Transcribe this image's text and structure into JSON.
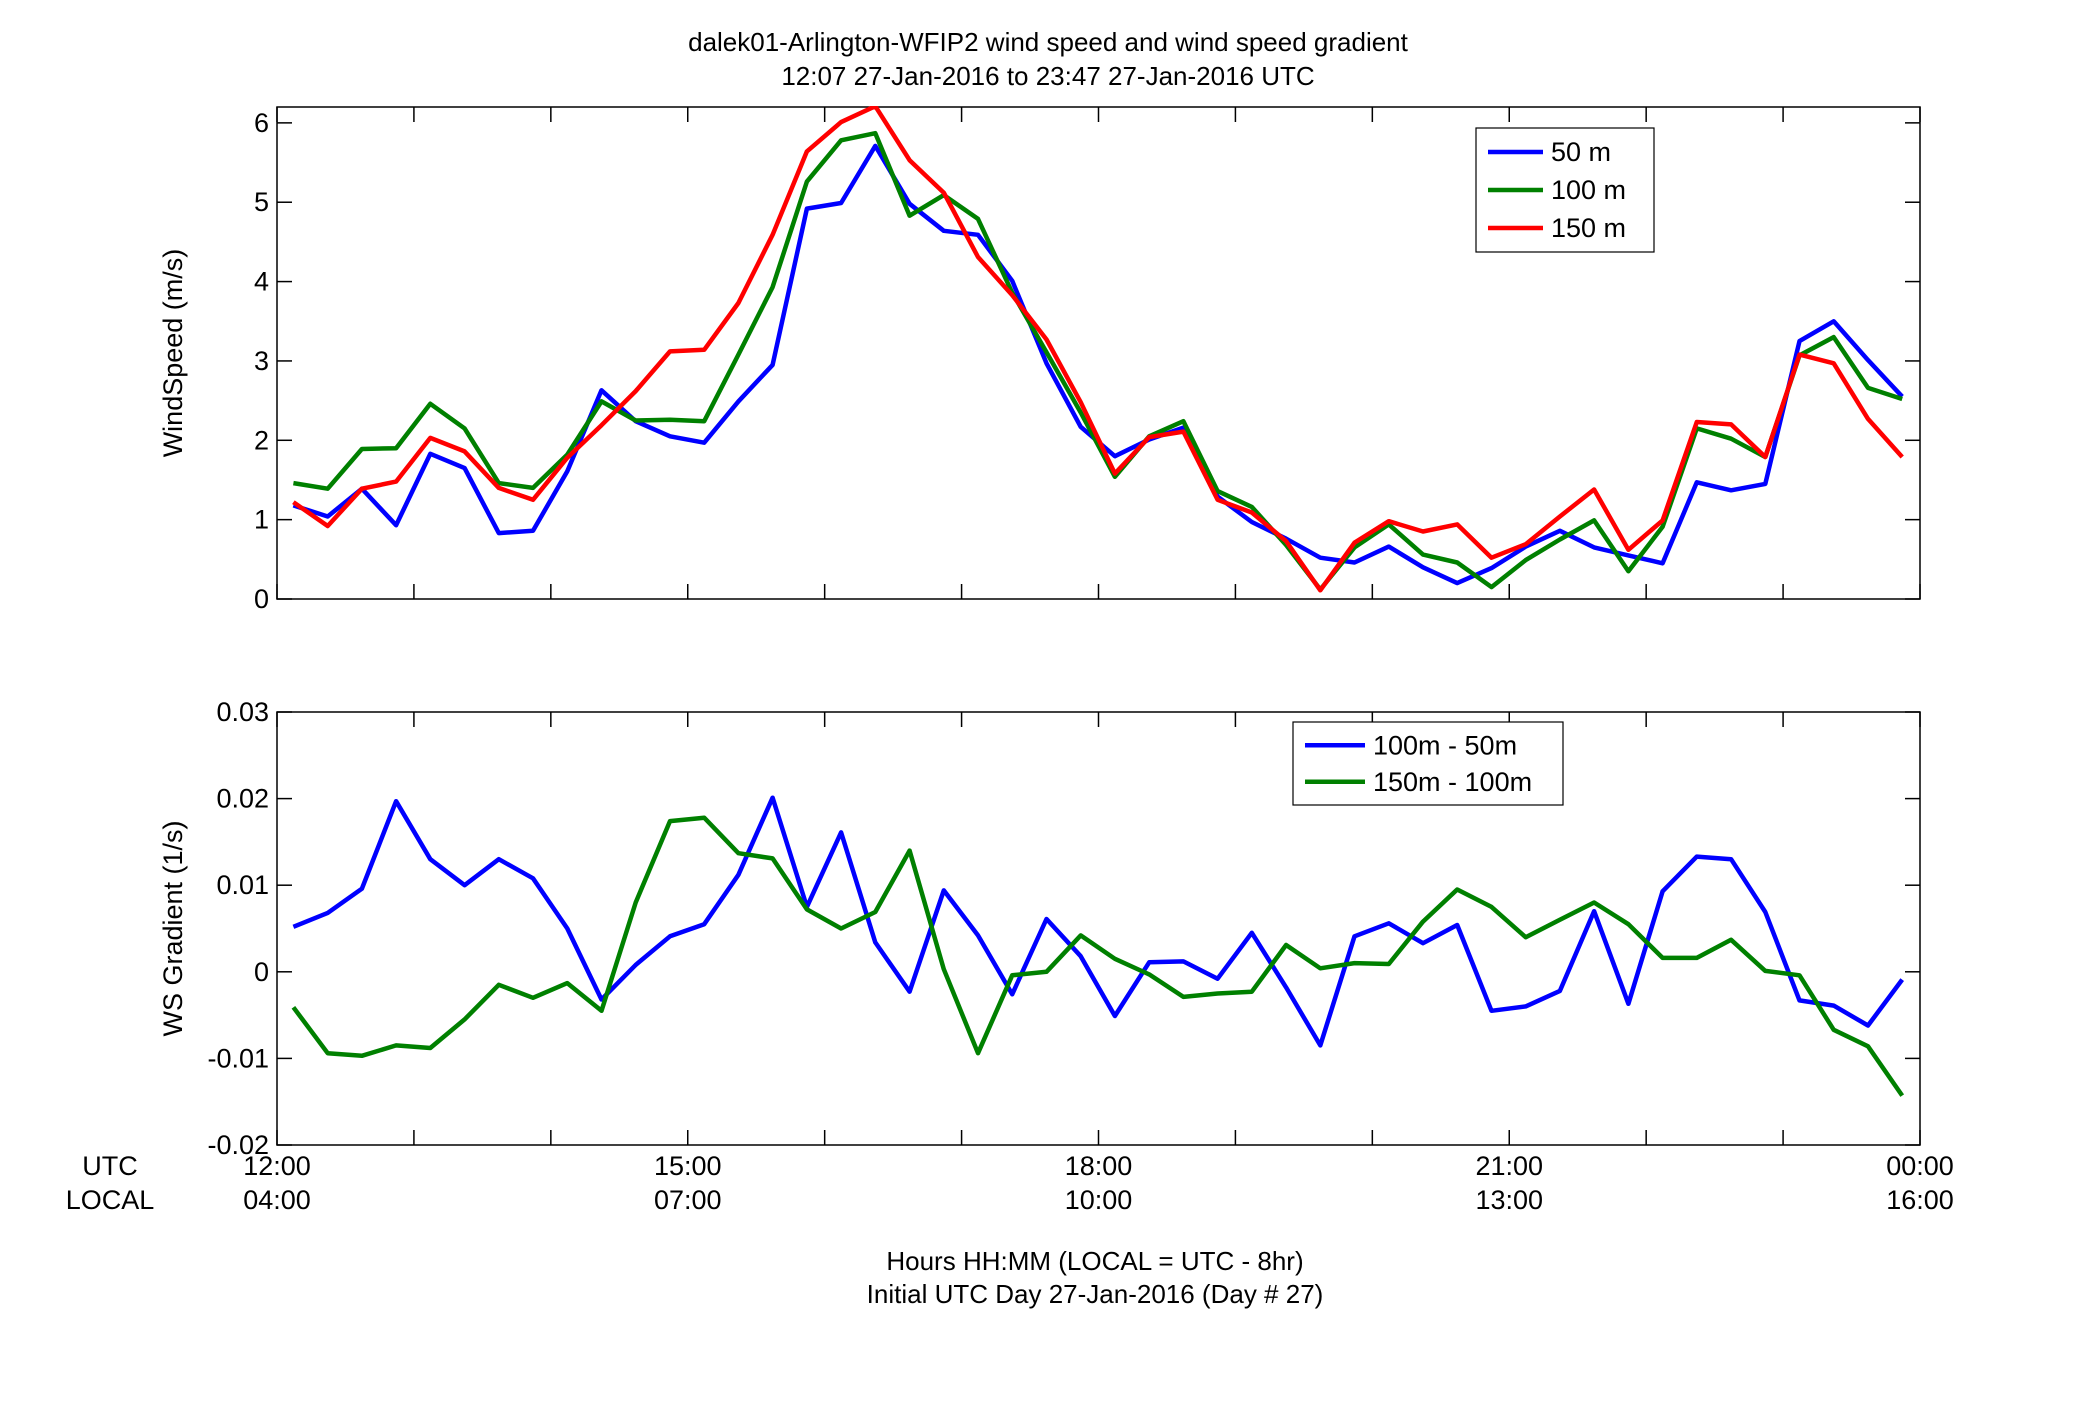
{
  "figure": {
    "title_line1": "dalek01-Arlington-WFIP2  wind speed and wind speed gradient",
    "title_line2": "12:07 27-Jan-2016 to 23:47 27-Jan-2016  UTC",
    "row_label_utc": "UTC",
    "row_label_local": "LOCAL",
    "xlabel_line1": "Hours HH:MM  (LOCAL = UTC - 8hr)",
    "xlabel_line2": "Initial UTC Day 27-Jan-2016 (Day # 27)"
  },
  "chart_data": [
    {
      "type": "line",
      "title": "",
      "xlabel": "",
      "ylabel": "WindSpeed (m/s)",
      "xlim": [
        12.0,
        24.0
      ],
      "ylim": [
        0,
        6.2
      ],
      "yticks": [
        0,
        1,
        2,
        3,
        4,
        5,
        6
      ],
      "ytick_labels": [
        "0",
        "1",
        "2",
        "3",
        "4",
        "5",
        "6"
      ],
      "grid": false,
      "legend_position": "top-right",
      "x_hours": [
        12.12,
        12.37,
        12.62,
        12.87,
        13.12,
        13.37,
        13.62,
        13.87,
        14.12,
        14.37,
        14.62,
        14.87,
        15.12,
        15.37,
        15.62,
        15.87,
        16.12,
        16.37,
        16.62,
        16.87,
        17.12,
        17.37,
        17.62,
        17.87,
        18.12,
        18.37,
        18.62,
        18.87,
        19.12,
        19.37,
        19.62,
        19.87,
        20.12,
        20.37,
        20.62,
        20.87,
        21.12,
        21.37,
        21.62,
        21.87,
        22.12,
        22.37,
        22.62,
        22.87,
        23.12,
        23.37,
        23.62,
        23.87
      ],
      "series": [
        {
          "name": "50 m",
          "color": "#0000ff",
          "values": [
            1.18,
            1.04,
            1.39,
            0.93,
            1.83,
            1.65,
            0.83,
            0.86,
            1.61,
            2.63,
            2.24,
            2.05,
            1.97,
            2.49,
            2.95,
            4.92,
            4.99,
            5.71,
            4.98,
            4.64,
            4.59,
            4.01,
            2.97,
            2.17,
            1.8,
            2.01,
            2.16,
            1.29,
            0.97,
            0.76,
            0.52,
            0.46,
            0.66,
            0.4,
            0.2,
            0.39,
            0.66,
            0.86,
            0.65,
            0.55,
            0.45,
            1.47,
            1.37,
            1.45,
            3.25,
            3.5,
            3.01,
            2.55
          ]
        },
        {
          "name": "100 m",
          "color": "#008000",
          "values": [
            1.46,
            1.39,
            1.89,
            1.9,
            2.46,
            2.15,
            1.46,
            1.4,
            1.82,
            2.49,
            2.25,
            2.26,
            2.24,
            3.08,
            3.93,
            5.26,
            5.78,
            5.87,
            4.83,
            5.09,
            4.79,
            3.86,
            3.11,
            2.35,
            1.54,
            2.05,
            2.24,
            1.36,
            1.16,
            0.68,
            0.12,
            0.65,
            0.94,
            0.56,
            0.46,
            0.15,
            0.49,
            0.75,
            0.99,
            0.35,
            0.91,
            2.15,
            2.02,
            1.79,
            3.07,
            3.3,
            2.66,
            2.52
          ]
        },
        {
          "name": "150 m",
          "color": "#ff0000",
          "values": [
            1.22,
            0.92,
            1.39,
            1.48,
            2.03,
            1.86,
            1.4,
            1.25,
            1.78,
            2.19,
            2.62,
            3.12,
            3.14,
            3.73,
            4.59,
            5.64,
            6.01,
            6.21,
            5.53,
            5.12,
            4.31,
            3.83,
            3.27,
            2.48,
            1.58,
            2.04,
            2.11,
            1.25,
            1.09,
            0.73,
            0.11,
            0.71,
            0.98,
            0.85,
            0.94,
            0.52,
            0.69,
            1.04,
            1.38,
            0.62,
            0.99,
            2.23,
            2.2,
            1.79,
            3.08,
            2.97,
            2.27,
            1.79
          ]
        }
      ]
    },
    {
      "type": "line",
      "title": "",
      "xlabel": "",
      "ylabel": "WS Gradient (1/s)",
      "xlim": [
        12.0,
        24.0
      ],
      "ylim": [
        -0.02,
        0.03
      ],
      "yticks": [
        -0.02,
        -0.01,
        0,
        0.01,
        0.02,
        0.03
      ],
      "ytick_labels": [
        "-0.02",
        "-0.01",
        "0",
        "0.01",
        "0.02",
        "0.03"
      ],
      "xtick_values": [
        12,
        15,
        18,
        21,
        24
      ],
      "xtick_labels_utc": [
        "12:00",
        "15:00",
        "18:00",
        "21:00",
        "00:00"
      ],
      "xtick_labels_local": [
        "04:00",
        "07:00",
        "10:00",
        "13:00",
        "16:00"
      ],
      "grid": false,
      "legend_position": "top-right",
      "x_hours": [
        12.12,
        12.37,
        12.62,
        12.87,
        13.12,
        13.37,
        13.62,
        13.87,
        14.12,
        14.37,
        14.62,
        14.87,
        15.12,
        15.37,
        15.62,
        15.87,
        16.12,
        16.37,
        16.62,
        16.87,
        17.12,
        17.37,
        17.62,
        17.87,
        18.12,
        18.37,
        18.62,
        18.87,
        19.12,
        19.37,
        19.62,
        19.87,
        20.12,
        20.37,
        20.62,
        20.87,
        21.12,
        21.37,
        21.62,
        21.87,
        22.12,
        22.37,
        22.62,
        22.87,
        23.12,
        23.37,
        23.62,
        23.87
      ],
      "series": [
        {
          "name": "100m - 50m",
          "color": "#0000ff",
          "values": [
            0.0052,
            0.0068,
            0.0096,
            0.0197,
            0.013,
            0.01,
            0.013,
            0.0108,
            0.005,
            -0.0032,
            0.0008,
            0.0041,
            0.0055,
            0.0112,
            0.0201,
            0.0075,
            0.0161,
            0.0034,
            -0.0023,
            0.0094,
            0.0042,
            -0.0026,
            0.0061,
            0.0018,
            -0.0051,
            0.0011,
            0.0012,
            -0.0008,
            0.0045,
            -0.0018,
            -0.0085,
            0.0041,
            0.0056,
            0.0033,
            0.0054,
            -0.0045,
            -0.004,
            -0.0022,
            0.007,
            -0.0037,
            0.0093,
            0.0133,
            0.013,
            0.0069,
            -0.0033,
            -0.0039,
            -0.0062,
            -0.0009
          ]
        },
        {
          "name": "150m - 100m",
          "color": "#008000",
          "values": [
            -0.0041,
            -0.0094,
            -0.0097,
            -0.0085,
            -0.0088,
            -0.0055,
            -0.0015,
            -0.003,
            -0.0013,
            -0.0045,
            0.008,
            0.0174,
            0.0178,
            0.0137,
            0.0131,
            0.0072,
            0.005,
            0.0069,
            0.014,
            0.0003,
            -0.0094,
            -0.0004,
            0.0,
            0.0042,
            0.0015,
            -0.0003,
            -0.0029,
            -0.0025,
            -0.0023,
            0.0031,
            0.0004,
            0.001,
            0.0009,
            0.0058,
            0.0095,
            0.0075,
            0.004,
            0.006,
            0.008,
            0.0055,
            0.0016,
            0.0016,
            0.0037,
            0.0001,
            -0.0004,
            -0.0067,
            -0.0086,
            -0.0143
          ]
        }
      ]
    }
  ]
}
